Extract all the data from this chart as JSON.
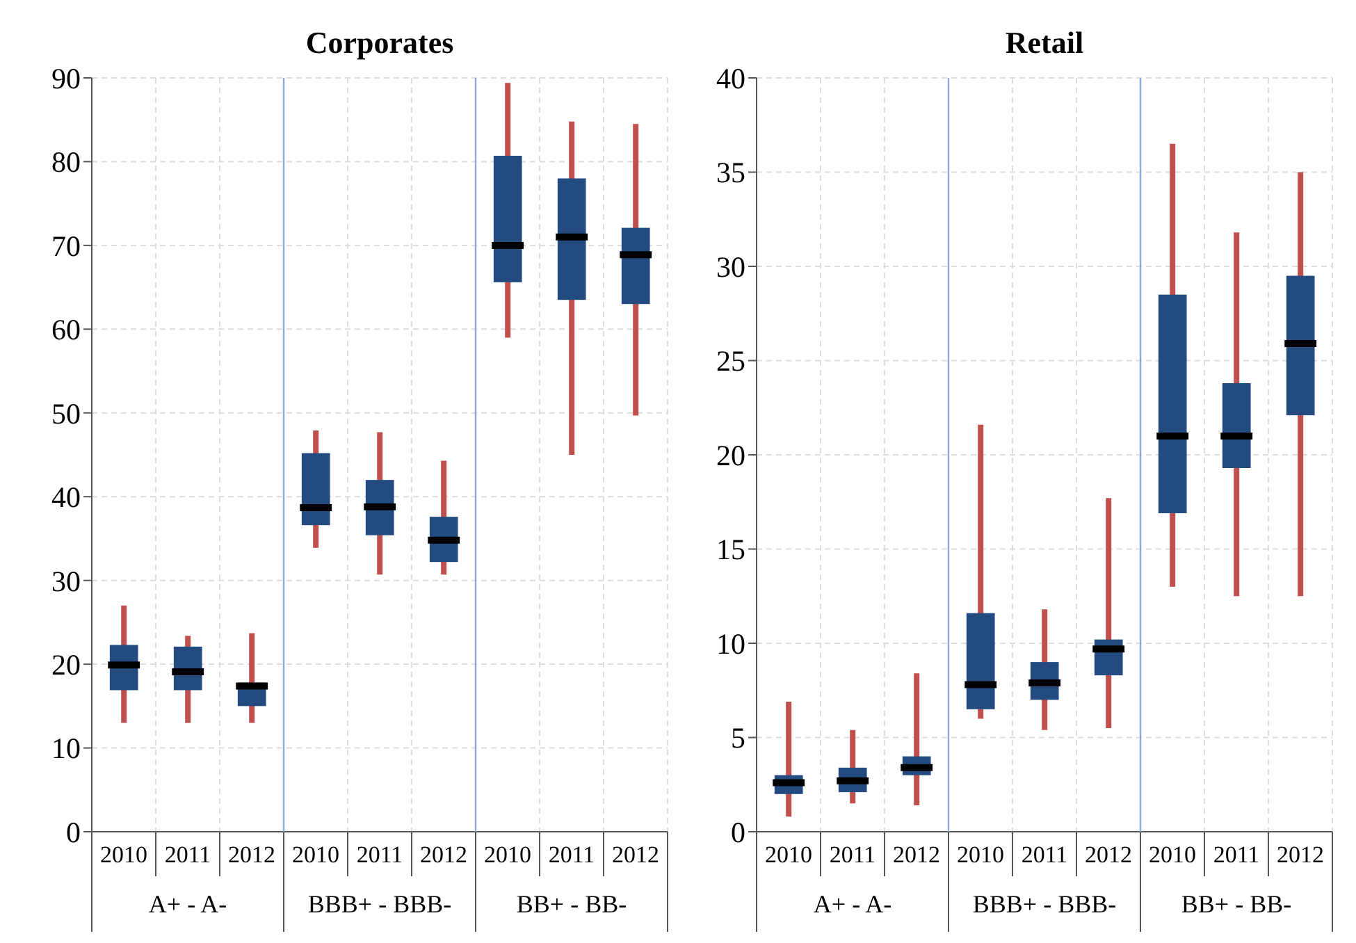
{
  "chart_data": [
    {
      "type": "box",
      "title": "Corporates",
      "categories": [
        "2010",
        "2011",
        "2012",
        "2010",
        "2011",
        "2012",
        "2010",
        "2011",
        "2012"
      ],
      "annotations": [
        "A+ - A-",
        "BBB+ - BBB-",
        "BB+ - BB-"
      ],
      "ylim": [
        0,
        90
      ],
      "yticks": [
        0,
        10,
        20,
        30,
        40,
        50,
        60,
        70,
        80,
        90
      ],
      "grid": true,
      "legend": false,
      "series": [
        {
          "color": "#234b7f",
          "boxes": [
            {
              "low": 13,
              "q1": 16.9,
              "median": 19.9,
              "q3": 22.3,
              "high": 27
            },
            {
              "low": 13,
              "q1": 16.9,
              "median": 19.1,
              "q3": 22.1,
              "high": 23.4
            },
            {
              "low": 13,
              "q1": 15,
              "median": 17.4,
              "q3": 17.8,
              "high": 23.7
            },
            {
              "low": 33.9,
              "q1": 36.6,
              "median": 38.7,
              "q3": 45.2,
              "high": 47.9
            },
            {
              "low": 30.7,
              "q1": 35.4,
              "median": 38.8,
              "q3": 42,
              "high": 47.7
            },
            {
              "low": 30.7,
              "q1": 32.2,
              "median": 34.8,
              "q3": 37.6,
              "high": 44.3
            },
            {
              "low": 59,
              "q1": 65.6,
              "median": 70,
              "q3": 80.7,
              "high": 89.4
            },
            {
              "low": 45,
              "q1": 63.5,
              "median": 71,
              "q3": 78,
              "high": 84.8
            },
            {
              "low": 49.7,
              "q1": 63,
              "median": 68.9,
              "q3": 72.1,
              "high": 84.5
            }
          ]
        }
      ]
    },
    {
      "type": "box",
      "title": "Retail",
      "categories": [
        "2010",
        "2011",
        "2012",
        "2010",
        "2011",
        "2012",
        "2010",
        "2011",
        "2012"
      ],
      "annotations": [
        "A+ - A-",
        "BBB+ - BBB-",
        "BB+ - BB-"
      ],
      "ylim": [
        0,
        40
      ],
      "yticks": [
        0,
        5,
        10,
        15,
        20,
        25,
        30,
        35,
        40
      ],
      "grid": true,
      "legend": false,
      "series": [
        {
          "color": "#234b7f",
          "boxes": [
            {
              "low": 0.8,
              "q1": 2,
              "median": 2.6,
              "q3": 3,
              "high": 6.9
            },
            {
              "low": 1.5,
              "q1": 2.1,
              "median": 2.7,
              "q3": 3.4,
              "high": 5.4
            },
            {
              "low": 1.4,
              "q1": 3,
              "median": 3.4,
              "q3": 4,
              "high": 8.4
            },
            {
              "low": 6,
              "q1": 6.5,
              "median": 7.8,
              "q3": 11.6,
              "high": 21.6
            },
            {
              "low": 5.4,
              "q1": 7,
              "median": 7.9,
              "q3": 9,
              "high": 11.8
            },
            {
              "low": 5.5,
              "q1": 8.3,
              "median": 9.7,
              "q3": 10.2,
              "high": 17.7
            },
            {
              "low": 13,
              "q1": 16.9,
              "median": 21,
              "q3": 28.5,
              "high": 36.5
            },
            {
              "low": 12.5,
              "q1": 19.3,
              "median": 21,
              "q3": 23.8,
              "high": 31.8
            },
            {
              "low": 12.5,
              "q1": 22.1,
              "median": 25.9,
              "q3": 29.5,
              "high": 35
            }
          ]
        }
      ]
    }
  ]
}
